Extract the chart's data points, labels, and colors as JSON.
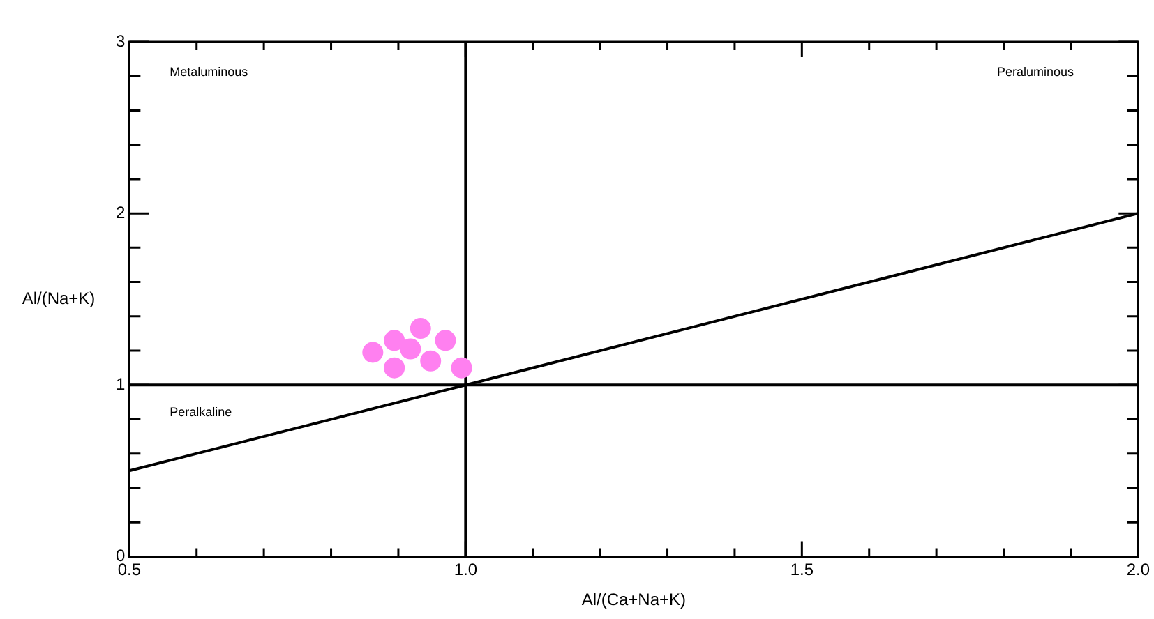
{
  "chart_data": {
    "type": "scatter",
    "xlabel": "Al/(Ca+Na+K)",
    "ylabel": "Al/(Na+K)",
    "annotations": [
      "Metaluminous",
      "Peraluminous",
      "Peralkaline"
    ],
    "xlim": [
      0.5,
      2.0
    ],
    "xticks": [
      0.5,
      {
        "value": 0.6,
        "label": null
      },
      {
        "value": 0.7,
        "label": null
      },
      {
        "value": 0.8,
        "label": null
      },
      {
        "value": 0.9,
        "label": null
      },
      {
        "value": 1.0,
        "label": "1.0"
      },
      {
        "value": 1.1,
        "label": null
      },
      {
        "value": 1.2,
        "label": null
      },
      {
        "value": 1.3,
        "label": null
      },
      {
        "value": 1.4,
        "label": null
      },
      1.5,
      {
        "value": 1.6,
        "label": null
      },
      {
        "value": 1.7,
        "label": null
      },
      {
        "value": 1.8,
        "label": null
      },
      {
        "value": 1.9,
        "label": null
      },
      {
        "value": 2.0,
        "label": "2.0"
      }
    ],
    "ylim": [
      0,
      3
    ],
    "yticks": [
      0,
      {
        "value": 0.2,
        "label": null
      },
      {
        "value": 0.4,
        "label": null
      },
      {
        "value": 0.6,
        "label": null
      },
      {
        "value": 0.8,
        "label": null
      },
      1,
      {
        "value": 1.2,
        "label": null
      },
      {
        "value": 1.4,
        "label": null
      },
      {
        "value": 1.6,
        "label": null
      },
      {
        "value": 1.8,
        "label": null
      },
      2,
      {
        "value": 2.2,
        "label": null
      },
      {
        "value": 2.4,
        "label": null
      },
      {
        "value": 2.6,
        "label": null
      },
      {
        "value": 2.8,
        "label": null
      },
      3
    ],
    "grid": false,
    "legend": false,
    "series": [
      {
        "type": "scatter",
        "marker": "circle",
        "color": "#ff80f0",
        "x": [
          0.933,
          0.894,
          0.97,
          0.862,
          0.918,
          0.948,
          0.894,
          0.994
        ],
        "values": [
          1.33,
          1.26,
          1.26,
          1.19,
          1.21,
          1.14,
          1.1,
          1.1
        ]
      },
      {
        "type": "line",
        "color": "#000000",
        "x": [
          0.5,
          2.0
        ],
        "values": [
          0.5,
          2.0
        ]
      },
      {
        "type": "line",
        "color": "#000000",
        "x": [
          0.5,
          2.0
        ],
        "values": [
          1,
          1
        ]
      },
      {
        "type": "line",
        "color": "#000000",
        "x": [
          1.0,
          1.0
        ],
        "values": [
          0,
          3
        ]
      }
    ]
  }
}
